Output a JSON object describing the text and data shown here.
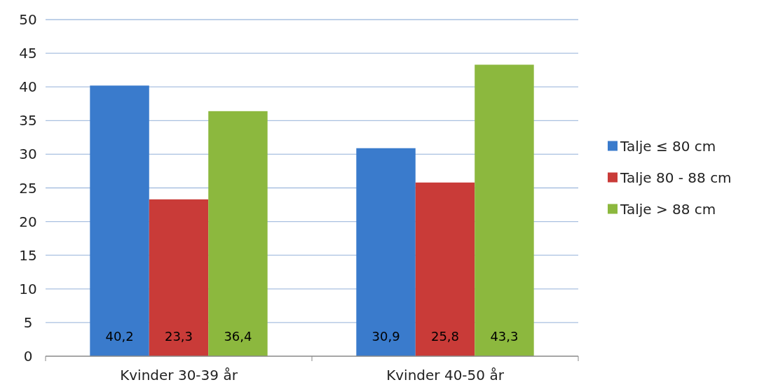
{
  "chart_data": {
    "type": "bar",
    "categories": [
      "Kvinder 30-39 år",
      "Kvinder 40-50 år"
    ],
    "series": [
      {
        "name": "Talje ≤ 80 cm",
        "color": "#3a7bcc",
        "values": [
          40.2,
          30.9
        ],
        "value_labels": [
          "40,2",
          "30,9"
        ]
      },
      {
        "name": "Talje 80 - 88 cm",
        "color": "#c93b38",
        "values": [
          23.3,
          25.8
        ],
        "value_labels": [
          "23,3",
          "25,8"
        ]
      },
      {
        "name": "Talje > 88 cm",
        "color": "#8cb83e",
        "values": [
          36.4,
          43.3
        ],
        "value_labels": [
          "36,4",
          "43,3"
        ]
      }
    ],
    "ylim": [
      0,
      50
    ],
    "yticks": [
      0,
      5,
      10,
      15,
      20,
      25,
      30,
      35,
      40,
      45,
      50
    ],
    "grid": "y",
    "legend": "right"
  }
}
